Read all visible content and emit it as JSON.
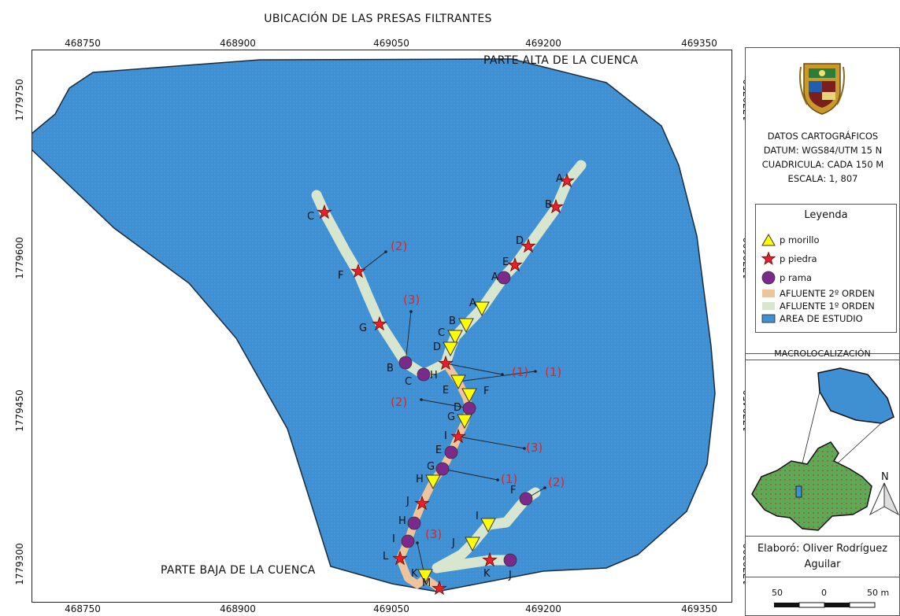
{
  "title": "UBICACIÓN DE LAS PRESAS FILTRANTES",
  "axes": {
    "x_ticks": [
      "468750",
      "468900",
      "469050",
      "469200",
      "469350"
    ],
    "y_ticks": [
      "1779750",
      "1779600",
      "1779450",
      "1779300"
    ]
  },
  "map": {
    "top_label": "PARTE ALTA DE LA CUENCA",
    "bottom_label": "PARTE BAJA DE LA CUENCA",
    "points": [
      {
        "type": "piedra",
        "label": "A"
      },
      {
        "type": "piedra",
        "label": "B"
      },
      {
        "type": "piedra",
        "label": "D"
      },
      {
        "type": "piedra",
        "label": "E"
      },
      {
        "type": "rama",
        "label": "A"
      },
      {
        "type": "morillo",
        "label": "A"
      },
      {
        "type": "morillo",
        "label": "B"
      },
      {
        "type": "morillo",
        "label": "C"
      },
      {
        "type": "morillo",
        "label": "D"
      },
      {
        "type": "piedra",
        "label": "C"
      },
      {
        "type": "piedra",
        "label": "F"
      },
      {
        "type": "piedra",
        "label": "G"
      },
      {
        "type": "rama",
        "label": "B"
      },
      {
        "type": "rama",
        "label": "C"
      },
      {
        "type": "piedra",
        "label": "H"
      },
      {
        "type": "morillo",
        "label": "E"
      },
      {
        "type": "morillo",
        "label": "F"
      },
      {
        "type": "rama",
        "label": "D"
      },
      {
        "type": "morillo",
        "label": "G"
      },
      {
        "type": "piedra",
        "label": "I"
      },
      {
        "type": "rama",
        "label": "E"
      },
      {
        "type": "rama",
        "label": "G"
      },
      {
        "type": "morillo",
        "label": "H"
      },
      {
        "type": "piedra",
        "label": "J"
      },
      {
        "type": "rama",
        "label": "H"
      },
      {
        "type": "rama",
        "label": "I"
      },
      {
        "type": "piedra",
        "label": "L"
      },
      {
        "type": "morillo",
        "label": "K"
      },
      {
        "type": "piedra",
        "label": "M"
      },
      {
        "type": "rama",
        "label": "F"
      },
      {
        "type": "morillo",
        "label": "I"
      },
      {
        "type": "morillo",
        "label": "J"
      },
      {
        "type": "piedra",
        "label": "K"
      },
      {
        "type": "rama",
        "label": "J"
      }
    ],
    "annotations": [
      "(2)",
      "(3)",
      "(1)",
      "(1)",
      "(2)",
      "(3)",
      "(1)",
      "(2)",
      "(3)"
    ]
  },
  "panel": {
    "carto_lines": [
      "DATOS CARTOGRÁFICOS",
      "DATUM: WGS84/UTM 15 N",
      "CUADRICULA: CADA 150 M",
      "ESCALA: 1, 807"
    ],
    "legend_title": "Leyenda",
    "legend": [
      {
        "symbol": "triangle",
        "label": "p morillo"
      },
      {
        "symbol": "star",
        "label": "p piedra"
      },
      {
        "symbol": "circle",
        "label": "p rama"
      },
      {
        "symbol": "line-orange",
        "label": "AFLUENTE 2º ORDEN"
      },
      {
        "symbol": "line-green",
        "label": "AFLUENTE 1º ORDEN"
      },
      {
        "symbol": "area-blue",
        "label": "AREA DE ESTUDIO"
      }
    ],
    "macro_title": "MACROLOCALIZACIÓN",
    "north_label": "N",
    "author_line1": "Elaboró: Oliver Rodríguez",
    "author_line2": "Aguilar",
    "scale_labels": [
      "50",
      "0",
      "50 m"
    ]
  },
  "colors": {
    "water": "#3f8fd3",
    "tributary_1": "#d8e6cf",
    "tributary_2": "#f0c49a",
    "morillo": "#ffff00",
    "piedra": "#e8202a",
    "rama": "#7b2a8c",
    "annotation": "#e52222",
    "macro_green": "#5daa56"
  }
}
